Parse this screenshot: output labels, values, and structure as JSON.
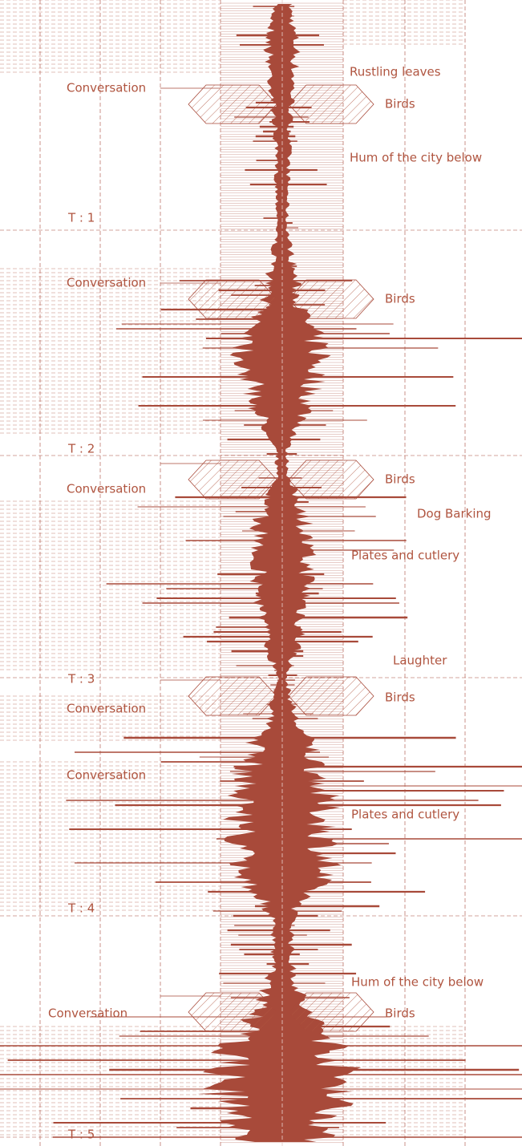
{
  "sound_labels": [
    "Rustling leaves",
    "Conversation",
    "Birds",
    "Hum of the city below",
    "Conversation",
    "Birds",
    "Birds",
    "Conversation",
    "Dog Barking",
    "Plates and cutlery",
    "Laughter",
    "Birds",
    "Conversation",
    "Conversation",
    "Plates and cutlery",
    "Hum of the city below",
    "Conversation",
    "Birds"
  ],
  "time_markers": [
    "T : 1",
    "T : 2",
    "T : 3",
    "T : 4",
    "T : 5"
  ]
}
